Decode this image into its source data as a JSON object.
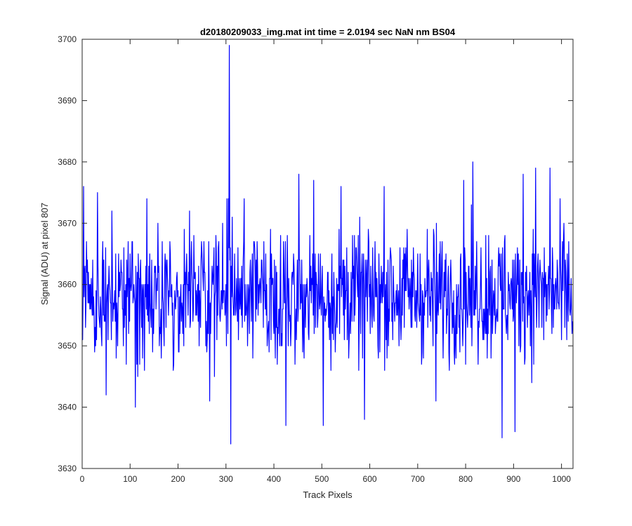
{
  "chart_data": {
    "type": "line",
    "title": "d20180209033_img.mat int time = 2.0194 sec  NaN nm BS04",
    "xlabel": "Track Pixels",
    "ylabel": "Signal (ADU) at pixel 807",
    "xlim": [
      0,
      1024
    ],
    "ylim": [
      3630,
      3700
    ],
    "xticks": [
      0,
      100,
      200,
      300,
      400,
      500,
      600,
      700,
      800,
      900,
      1000
    ],
    "yticks": [
      3630,
      3640,
      3650,
      3660,
      3670,
      3680,
      3690,
      3700
    ],
    "grid": false,
    "legend": "none",
    "series": [
      {
        "color": "#0000ff",
        "n_points": 1024,
        "mean": 3658.5,
        "typical_range": [
          3643,
          3675
        ],
        "notable_points": [
          {
            "x": 1,
            "y": 3651
          },
          {
            "x": 3,
            "y": 3676
          },
          {
            "x": 32,
            "y": 3675
          },
          {
            "x": 50,
            "y": 3642
          },
          {
            "x": 62,
            "y": 3672
          },
          {
            "x": 111,
            "y": 3640
          },
          {
            "x": 135,
            "y": 3674
          },
          {
            "x": 266,
            "y": 3641
          },
          {
            "x": 302,
            "y": 3674
          },
          {
            "x": 305,
            "y": 3674
          },
          {
            "x": 307,
            "y": 3699
          },
          {
            "x": 310,
            "y": 3634
          },
          {
            "x": 338,
            "y": 3674
          },
          {
            "x": 425,
            "y": 3637
          },
          {
            "x": 452,
            "y": 3678
          },
          {
            "x": 483,
            "y": 3677
          },
          {
            "x": 503,
            "y": 3637
          },
          {
            "x": 540,
            "y": 3676
          },
          {
            "x": 589,
            "y": 3638
          },
          {
            "x": 630,
            "y": 3676
          },
          {
            "x": 738,
            "y": 3641
          },
          {
            "x": 796,
            "y": 3677
          },
          {
            "x": 815,
            "y": 3680
          },
          {
            "x": 876,
            "y": 3635
          },
          {
            "x": 903,
            "y": 3636
          },
          {
            "x": 920,
            "y": 3678
          },
          {
            "x": 946,
            "y": 3679
          },
          {
            "x": 976,
            "y": 3679
          },
          {
            "x": 1005,
            "y": 3670
          },
          {
            "x": 1023,
            "y": 3654
          }
        ]
      }
    ]
  }
}
